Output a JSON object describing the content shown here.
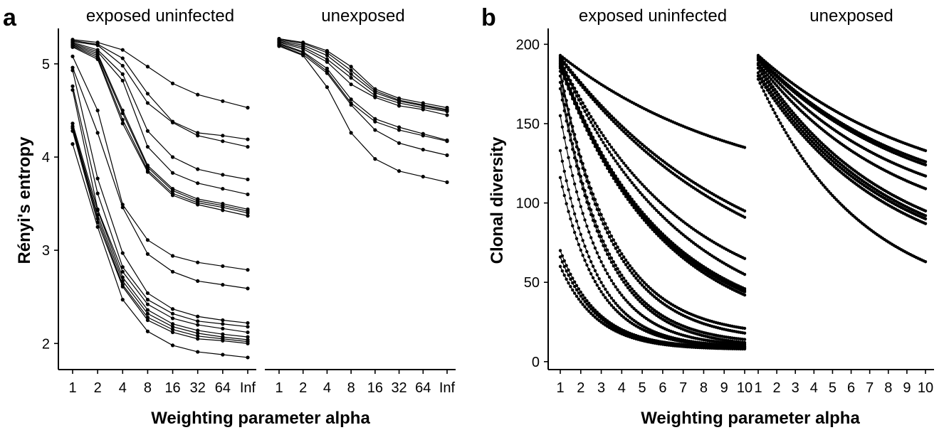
{
  "figure": {
    "panels": [
      {
        "id": "a",
        "letter": "a"
      },
      {
        "id": "b",
        "letter": "b"
      }
    ]
  },
  "chart_data": [
    {
      "panel": "a",
      "type": "line",
      "facets": [
        "exposed uninfected",
        "unexposed"
      ],
      "xlabel": "Weighting parameter alpha",
      "ylabel": "Rényi's entropy",
      "x": [
        "1",
        "2",
        "4",
        "8",
        "16",
        "32",
        "64",
        "Inf"
      ],
      "ylim": [
        1.72,
        5.38
      ],
      "yticks": [
        2,
        3,
        4,
        5
      ],
      "grid": false,
      "series": [
        {
          "facet": "exposed uninfected",
          "values": [
            5.26,
            5.23,
            5.15,
            4.97,
            4.79,
            4.67,
            4.6,
            4.53
          ]
        },
        {
          "facet": "exposed uninfected",
          "values": [
            5.25,
            5.21,
            5.06,
            4.68,
            4.38,
            4.26,
            4.23,
            4.19
          ]
        },
        {
          "facet": "exposed uninfected",
          "values": [
            5.24,
            5.2,
            4.98,
            4.58,
            4.37,
            4.23,
            4.17,
            4.11
          ]
        },
        {
          "facet": "exposed uninfected",
          "values": [
            5.23,
            5.15,
            4.89,
            4.28,
            4.0,
            3.87,
            3.81,
            3.76
          ]
        },
        {
          "facet": "exposed uninfected",
          "values": [
            5.22,
            5.13,
            4.82,
            4.11,
            3.83,
            3.72,
            3.66,
            3.6
          ]
        },
        {
          "facet": "exposed uninfected",
          "values": [
            5.21,
            5.11,
            4.5,
            3.91,
            3.66,
            3.55,
            3.5,
            3.44
          ]
        },
        {
          "facet": "exposed uninfected",
          "values": [
            5.2,
            5.09,
            4.47,
            3.89,
            3.64,
            3.53,
            3.48,
            3.42
          ]
        },
        {
          "facet": "exposed uninfected",
          "values": [
            5.19,
            5.07,
            4.4,
            3.86,
            3.61,
            3.51,
            3.46,
            3.4
          ]
        },
        {
          "facet": "exposed uninfected",
          "values": [
            5.18,
            5.05,
            4.36,
            3.84,
            3.59,
            3.49,
            3.43,
            3.37
          ]
        },
        {
          "facet": "exposed uninfected",
          "values": [
            5.08,
            4.5,
            3.49,
            3.11,
            2.94,
            2.87,
            2.83,
            2.79
          ]
        },
        {
          "facet": "exposed uninfected",
          "values": [
            4.96,
            4.26,
            3.46,
            2.96,
            2.77,
            2.67,
            2.63,
            2.59
          ]
        },
        {
          "facet": "exposed uninfected",
          "values": [
            4.93,
            3.77,
            2.97,
            2.54,
            2.37,
            2.29,
            2.25,
            2.22
          ]
        },
        {
          "facet": "exposed uninfected",
          "values": [
            4.76,
            3.61,
            2.82,
            2.47,
            2.32,
            2.24,
            2.21,
            2.18
          ]
        },
        {
          "facet": "exposed uninfected",
          "values": [
            4.72,
            3.44,
            2.77,
            2.42,
            2.27,
            2.2,
            2.16,
            2.12
          ]
        },
        {
          "facet": "exposed uninfected",
          "values": [
            4.36,
            3.43,
            2.71,
            2.36,
            2.21,
            2.14,
            2.1,
            2.07
          ]
        },
        {
          "facet": "exposed uninfected",
          "values": [
            4.33,
            3.38,
            2.67,
            2.32,
            2.18,
            2.11,
            2.07,
            2.04
          ]
        },
        {
          "facet": "exposed uninfected",
          "values": [
            4.31,
            3.34,
            2.63,
            2.28,
            2.15,
            2.08,
            2.05,
            2.02
          ]
        },
        {
          "facet": "exposed uninfected",
          "values": [
            4.28,
            3.3,
            2.61,
            2.25,
            2.12,
            2.05,
            2.03,
            2.0
          ]
        },
        {
          "facet": "exposed uninfected",
          "values": [
            4.14,
            3.25,
            2.47,
            2.13,
            1.98,
            1.91,
            1.88,
            1.85
          ]
        },
        {
          "facet": "unexposed",
          "values": [
            5.27,
            5.23,
            5.14,
            4.97,
            4.73,
            4.63,
            4.58,
            4.53
          ]
        },
        {
          "facet": "unexposed",
          "values": [
            5.26,
            5.22,
            5.12,
            4.93,
            4.71,
            4.61,
            4.56,
            4.51
          ]
        },
        {
          "facet": "unexposed",
          "values": [
            5.25,
            5.2,
            5.09,
            4.89,
            4.69,
            4.6,
            4.55,
            4.5
          ]
        },
        {
          "facet": "unexposed",
          "values": [
            5.24,
            5.18,
            5.05,
            4.85,
            4.66,
            4.58,
            4.53,
            4.49
          ]
        },
        {
          "facet": "unexposed",
          "values": [
            5.23,
            5.16,
            5.02,
            4.78,
            4.64,
            4.55,
            4.51,
            4.45
          ]
        },
        {
          "facet": "unexposed",
          "values": [
            5.22,
            5.13,
            4.95,
            4.62,
            4.41,
            4.32,
            4.25,
            4.18
          ]
        },
        {
          "facet": "unexposed",
          "values": [
            5.21,
            5.12,
            4.92,
            4.58,
            4.38,
            4.29,
            4.23,
            4.17
          ]
        },
        {
          "facet": "unexposed",
          "values": [
            5.2,
            5.1,
            4.9,
            4.56,
            4.29,
            4.15,
            4.08,
            4.02
          ]
        },
        {
          "facet": "unexposed",
          "values": [
            5.19,
            5.09,
            4.75,
            4.26,
            3.98,
            3.85,
            3.79,
            3.73
          ]
        }
      ]
    },
    {
      "panel": "b",
      "type": "line",
      "facets": [
        "exposed uninfected",
        "unexposed"
      ],
      "xlabel": "Weighting parameter alpha",
      "ylabel": "Clonal diversity",
      "xlim": [
        1,
        10
      ],
      "xticks": [
        1,
        2,
        3,
        4,
        5,
        6,
        7,
        8,
        9,
        10
      ],
      "ylim": [
        -5,
        210
      ],
      "yticks": [
        0,
        50,
        100,
        150,
        200
      ],
      "grid": false,
      "series": [
        {
          "facet": "exposed uninfected",
          "start": 193,
          "end": 135,
          "power": 1
        },
        {
          "facet": "exposed uninfected",
          "start": 192,
          "end": 95,
          "power": 1
        },
        {
          "facet": "exposed uninfected",
          "start": 191,
          "end": 91,
          "power": 1
        },
        {
          "facet": "exposed uninfected",
          "start": 190,
          "end": 65,
          "power": 1.5
        },
        {
          "facet": "exposed uninfected",
          "start": 189,
          "end": 55,
          "power": 1.5
        },
        {
          "facet": "exposed uninfected",
          "start": 188,
          "end": 46,
          "power": 1.8
        },
        {
          "facet": "exposed uninfected",
          "start": 187,
          "end": 45,
          "power": 1.8
        },
        {
          "facet": "exposed uninfected",
          "start": 186,
          "end": 44,
          "power": 1.8
        },
        {
          "facet": "exposed uninfected",
          "start": 185,
          "end": 42,
          "power": 1.8
        },
        {
          "facet": "exposed uninfected",
          "start": 183,
          "end": 21,
          "power": 3.5
        },
        {
          "facet": "exposed uninfected",
          "start": 180,
          "end": 18,
          "power": 3.5
        },
        {
          "facet": "exposed uninfected",
          "start": 176,
          "end": 14,
          "power": 4
        },
        {
          "facet": "exposed uninfected",
          "start": 172,
          "end": 12,
          "power": 4
        },
        {
          "facet": "exposed uninfected",
          "start": 155,
          "end": 11,
          "power": 4.5
        },
        {
          "facet": "exposed uninfected",
          "start": 133,
          "end": 10,
          "power": 5
        },
        {
          "facet": "exposed uninfected",
          "start": 116,
          "end": 9.5,
          "power": 5
        },
        {
          "facet": "exposed uninfected",
          "start": 70,
          "end": 9,
          "power": 5
        },
        {
          "facet": "exposed uninfected",
          "start": 66,
          "end": 8.5,
          "power": 5
        },
        {
          "facet": "exposed uninfected",
          "start": 60,
          "end": 8,
          "power": 5
        },
        {
          "facet": "unexposed",
          "start": 193,
          "end": 133,
          "power": 1
        },
        {
          "facet": "unexposed",
          "start": 192,
          "end": 126,
          "power": 1.1
        },
        {
          "facet": "unexposed",
          "start": 191,
          "end": 124,
          "power": 1.1
        },
        {
          "facet": "unexposed",
          "start": 190,
          "end": 117,
          "power": 1.2
        },
        {
          "facet": "unexposed",
          "start": 188,
          "end": 109,
          "power": 1.2
        },
        {
          "facet": "unexposed",
          "start": 187,
          "end": 95,
          "power": 1.3
        },
        {
          "facet": "unexposed",
          "start": 185,
          "end": 92,
          "power": 1.3
        },
        {
          "facet": "unexposed",
          "start": 182,
          "end": 90,
          "power": 1.3
        },
        {
          "facet": "unexposed",
          "start": 180,
          "end": 87,
          "power": 1.3
        },
        {
          "facet": "unexposed",
          "start": 178,
          "end": 63,
          "power": 1.6
        }
      ]
    }
  ]
}
